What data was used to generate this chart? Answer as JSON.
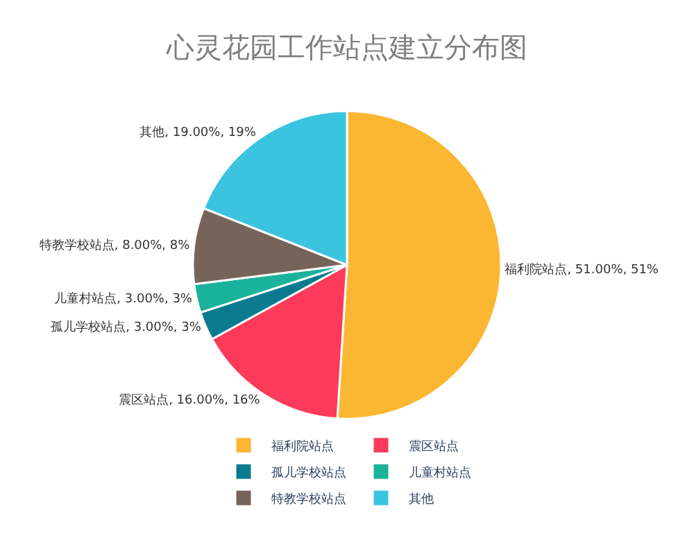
{
  "chart_data": {
    "type": "pie",
    "title": "心灵花园工作站点建立分布图",
    "categories": [
      "福利院站点",
      "震区站点",
      "孤儿学校站点",
      "儿童村站点",
      "特教学校站点",
      "其他"
    ],
    "values": [
      51,
      16,
      3,
      3,
      8,
      19
    ],
    "colors": [
      "#fbb732",
      "#fe3a5a",
      "#0a7b8f",
      "#1ab29a",
      "#76645a",
      "#3bc4e0"
    ],
    "value_labels": [
      "福利院站点, 51.00%, 51%",
      "震区站点, 16.00%, 16%",
      "孤儿学校站点, 3.00%, 3%",
      "儿童村站点, 3.00%, 3%",
      "特教学校站点, 8.00%, 8%",
      "其他, 19.00%, 19%"
    ],
    "legend": "bottom"
  }
}
